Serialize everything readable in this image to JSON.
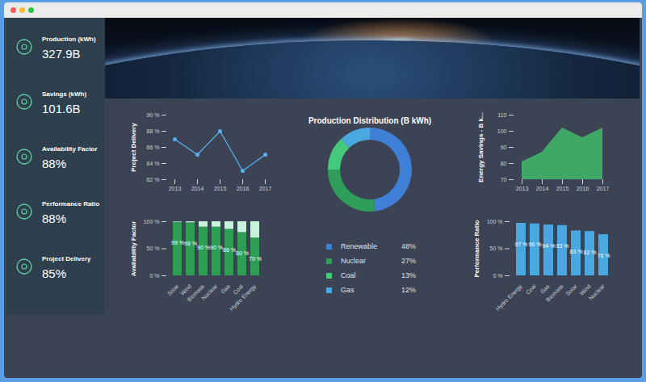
{
  "sidebar": [
    {
      "label": "Production (kWh)",
      "value": "327.9B"
    },
    {
      "label": "Savings (kWh)",
      "value": "101.6B"
    },
    {
      "label": "Availability Factor",
      "value": "88%"
    },
    {
      "label": "Performance Ratio",
      "value": "88%"
    },
    {
      "label": "Project Delivery",
      "value": "85%"
    }
  ],
  "chart_data": [
    {
      "type": "line",
      "y_label": "Project Delivery",
      "x": [
        2013,
        2014,
        2015,
        2016,
        2017
      ],
      "values": [
        87,
        85.1,
        88,
        83.1,
        85.1
      ],
      "color": "#5ab0ea",
      "marker": "circle",
      "xlim": [
        2013,
        2017
      ],
      "xticks": [
        2013,
        2014,
        2015,
        2016,
        2017
      ],
      "ylim": [
        82,
        90
      ],
      "yticks": [
        {
          "value": 82,
          "label": "82 %"
        },
        {
          "value": 84,
          "label": "84 %"
        },
        {
          "value": 86,
          "label": "86 %"
        },
        {
          "value": 88,
          "label": "88 %"
        },
        {
          "value": 90,
          "label": "90 %"
        }
      ]
    },
    {
      "type": "pie",
      "title": "Production Distribution (B kWh)",
      "categories": [
        "Renewable",
        "Nuclear",
        "Coal",
        "Gas"
      ],
      "values": [
        48,
        27,
        13,
        12
      ],
      "value_labels": [
        "48%",
        "27%",
        "13%",
        "12%"
      ],
      "colors": [
        "#3f7fd6",
        "#2f9e5a",
        "#45c97c",
        "#4aa8e0"
      ],
      "legend": "bottom"
    },
    {
      "type": "area",
      "y_label": "Energy Savings - B k...",
      "x": [
        2013,
        2014,
        2015,
        2016,
        2017
      ],
      "values": [
        81,
        87,
        102,
        96,
        102
      ],
      "color": "#3fa866",
      "xlim": [
        2013,
        2017
      ],
      "xticks": [
        2013,
        2014,
        2015,
        2016,
        2017
      ],
      "ylim": [
        70,
        110
      ],
      "yticks": [
        70,
        80,
        90,
        100,
        110
      ]
    },
    {
      "type": "bar",
      "stacked": true,
      "data_labels": true,
      "y_label": "Availability Factor",
      "categories": [
        "Solar",
        "Wind",
        "Biomass",
        "Nuclear",
        "Gas",
        "Coal",
        "Hydro Energy"
      ],
      "series": [
        {
          "color": "#2e9e55",
          "values": [
            99,
            98,
            90,
            90,
            86,
            80,
            70
          ],
          "value_labels": [
            "99 %",
            "98 %",
            "90 %",
            "90 %",
            "86 %",
            "80 %",
            "70 %"
          ]
        },
        {
          "color": "#c9f2dc",
          "values": [
            1,
            2,
            10,
            10,
            14,
            20,
            30
          ]
        }
      ],
      "ylim": [
        0,
        100
      ],
      "yticks": [
        {
          "value": 0,
          "label": "0 %"
        },
        {
          "value": 50,
          "label": "50 %"
        },
        {
          "value": 100,
          "label": "100 %"
        }
      ]
    },
    {
      "type": "bar",
      "data_labels": true,
      "y_label": "Performance Ratio",
      "categories": [
        "Hydro Energy",
        "Coal",
        "Gas",
        "Biomass",
        "Solar",
        "Wind",
        "Nuclear"
      ],
      "values": [
        97,
        96,
        94,
        93,
        83,
        82,
        76
      ],
      "value_labels": [
        "97 %",
        "96 %",
        "94 %",
        "93 %",
        "83 %",
        "82 %",
        "76 %"
      ],
      "color": "#4aa8e0",
      "ylim": [
        0,
        100
      ],
      "yticks": [
        {
          "value": 0,
          "label": "0 %"
        },
        {
          "value": 50,
          "label": "50 %"
        },
        {
          "value": 100,
          "label": "100 %"
        }
      ]
    }
  ]
}
